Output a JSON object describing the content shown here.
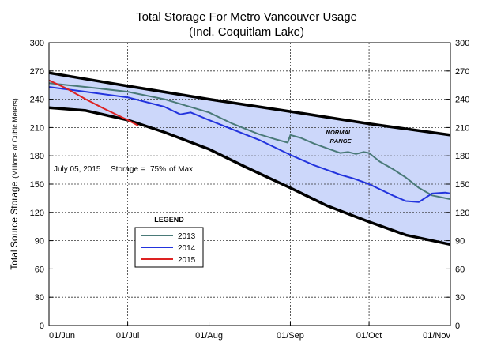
{
  "chart_data": {
    "type": "line",
    "title": "Total Storage For Metro Vancouver Usage",
    "subtitle": "(Incl. Coquitlam Lake)",
    "ylabel": "Total Source Storage",
    "ylabel_units": "(Millions of Cubic Meters)",
    "ylim": [
      0,
      300
    ],
    "yticks": [
      0,
      30,
      60,
      90,
      120,
      150,
      180,
      210,
      240,
      270,
      300
    ],
    "xlim": [
      "2015-06-01",
      "2015-11-01"
    ],
    "xtick_labels": [
      "01/Jun",
      "01/Jul",
      "01/Aug",
      "01/Sep",
      "01/Oct",
      "01/Nov"
    ],
    "xtick_dates": [
      "2015-06-01",
      "2015-07-01",
      "2015-08-01",
      "2015-09-01",
      "2015-10-01",
      "2015-11-01"
    ],
    "grid": true,
    "annotation": {
      "date_text": "July 05, 2015",
      "storage_label": "Storage =",
      "pct_text": "75%",
      "max_text": "of Max"
    },
    "range_label_line1": "NORMAL",
    "range_label_line2": "RANGE",
    "legend_title": "LEGEND",
    "legend_position": "lower-left",
    "normal_range": {
      "upper": {
        "x": [
          "2015-06-01",
          "2015-07-01",
          "2015-08-01",
          "2015-09-01",
          "2015-10-01",
          "2015-11-01"
        ],
        "y": [
          268,
          254,
          240,
          227,
          214,
          202
        ]
      },
      "lower": {
        "x": [
          "2015-06-01",
          "2015-06-15",
          "2015-07-01",
          "2015-07-15",
          "2015-08-01",
          "2015-08-15",
          "2015-09-01",
          "2015-09-15",
          "2015-10-01",
          "2015-10-15",
          "2015-11-01"
        ],
        "y": [
          231,
          228,
          218,
          205,
          187,
          168,
          146,
          127,
          110,
          96,
          86
        ]
      },
      "fill_color": "#ccd7fa",
      "line_color": "#000000"
    },
    "series": [
      {
        "name": "2013",
        "color": "#4a7a78",
        "x": [
          "2015-06-01",
          "2015-06-15",
          "2015-07-01",
          "2015-07-15",
          "2015-08-01",
          "2015-08-10",
          "2015-08-20",
          "2015-08-27",
          "2015-08-31",
          "2015-09-01",
          "2015-09-05",
          "2015-09-10",
          "2015-09-15",
          "2015-09-20",
          "2015-09-23",
          "2015-09-26",
          "2015-09-29",
          "2015-10-01",
          "2015-10-05",
          "2015-10-10",
          "2015-10-15",
          "2015-10-20",
          "2015-10-25",
          "2015-11-01"
        ],
        "y": [
          257,
          253,
          248,
          240,
          226,
          214,
          203,
          197,
          194,
          202,
          199,
          193,
          188,
          183,
          184,
          182,
          184,
          183,
          174,
          166,
          157,
          146,
          138,
          134
        ]
      },
      {
        "name": "2014",
        "color": "#2233dd",
        "x": [
          "2015-06-01",
          "2015-06-15",
          "2015-07-01",
          "2015-07-15",
          "2015-07-21",
          "2015-07-25",
          "2015-08-01",
          "2015-08-10",
          "2015-08-20",
          "2015-09-01",
          "2015-09-10",
          "2015-09-20",
          "2015-09-25",
          "2015-10-01",
          "2015-10-10",
          "2015-10-15",
          "2015-10-20",
          "2015-10-25",
          "2015-10-30",
          "2015-11-01"
        ],
        "y": [
          253,
          248,
          242,
          232,
          224,
          226,
          218,
          208,
          197,
          181,
          170,
          160,
          156,
          150,
          138,
          132,
          131,
          140,
          141,
          140
        ]
      },
      {
        "name": "2015",
        "color": "#dd2222",
        "x": [
          "2015-06-01",
          "2015-06-08",
          "2015-06-15",
          "2015-06-22",
          "2015-07-01",
          "2015-07-05"
        ],
        "y": [
          260,
          251,
          240,
          230,
          218,
          212
        ]
      }
    ]
  }
}
